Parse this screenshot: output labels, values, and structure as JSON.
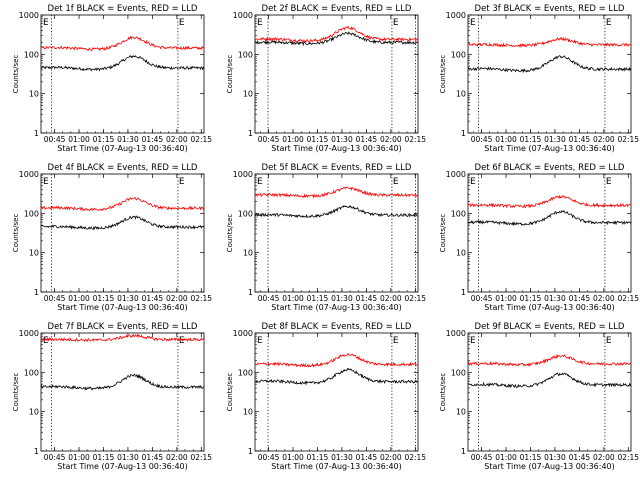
{
  "figure": {
    "xlabel": "Start Time (07-Aug-13 00:36:40)",
    "ylabel": "Counts/sec",
    "x_tick_labels": [
      "00:45",
      "01:00",
      "01:15",
      "01:30",
      "01:45",
      "02:00",
      "02:15"
    ],
    "y_tick_labels": [
      "1",
      "10",
      "100",
      "1000"
    ],
    "marker_label": "E",
    "colors": {
      "events": "#000000",
      "lld": "#ff0000",
      "axes": "#000000",
      "background": "#ffffff"
    }
  },
  "chart_data": [
    {
      "type": "line",
      "title": "Det 1f BLACK = Events, RED = LLD",
      "xlabel": "Start Time (07-Aug-13 00:36:40)",
      "ylabel": "Counts/sec",
      "x_unit": "minutes since 00:36:40",
      "xlim": [
        0,
        100
      ],
      "ylim": [
        1,
        1000
      ],
      "yscale": "log",
      "x_ticks": [
        8.33,
        23.33,
        38.33,
        53.33,
        68.33,
        83.33,
        98.33
      ],
      "markers": [
        {
          "x": 6.5,
          "style": "dotted"
        },
        {
          "x": 84.0,
          "style": "dotted",
          "label": "E"
        }
      ],
      "series": [
        {
          "name": "Events",
          "color": "#000000",
          "base": 45,
          "bump": 0.3
        },
        {
          "name": "LLD",
          "color": "#ff0000",
          "base": 145,
          "bump": 0.27
        }
      ]
    },
    {
      "type": "line",
      "title": "Det 2f BLACK = Events, RED = LLD",
      "xlabel": "Start Time (07-Aug-13 00:36:40)",
      "ylabel": "Counts/sec",
      "x_unit": "minutes since 00:36:40",
      "xlim": [
        0,
        100
      ],
      "ylim": [
        1,
        1000
      ],
      "yscale": "log",
      "x_ticks": [
        8.33,
        23.33,
        38.33,
        53.33,
        68.33,
        83.33,
        98.33
      ],
      "markers": [
        {
          "x": 8.0,
          "style": "dotted"
        },
        {
          "x": 84.0,
          "style": "dotted",
          "label": "E"
        },
        {
          "x": 98.5,
          "style": "dotted"
        }
      ],
      "series": [
        {
          "name": "Events",
          "color": "#000000",
          "base": 200,
          "bump": 0.23
        },
        {
          "name": "LLD",
          "color": "#ff0000",
          "base": 240,
          "bump": 0.3
        }
      ]
    },
    {
      "type": "line",
      "title": "Det 3f BLACK = Events, RED = LLD",
      "xlabel": "Start Time (07-Aug-13 00:36:40)",
      "ylabel": "Counts/sec",
      "x_unit": "minutes since 00:36:40",
      "xlim": [
        0,
        100
      ],
      "ylim": [
        1,
        1000
      ],
      "yscale": "log",
      "x_ticks": [
        8.33,
        23.33,
        38.33,
        53.33,
        68.33,
        83.33,
        98.33
      ],
      "markers": [
        {
          "x": 6.5,
          "style": "dotted"
        },
        {
          "x": 84.0,
          "style": "dotted",
          "label": "E"
        }
      ],
      "series": [
        {
          "name": "Events",
          "color": "#000000",
          "base": 42,
          "bump": 0.32
        },
        {
          "name": "LLD",
          "color": "#ff0000",
          "base": 175,
          "bump": 0.15
        }
      ]
    },
    {
      "type": "line",
      "title": "Det 4f BLACK = Events, RED = LLD",
      "xlabel": "Start Time (07-Aug-13 00:36:40)",
      "ylabel": "Counts/sec",
      "x_unit": "minutes since 00:36:40",
      "xlim": [
        0,
        100
      ],
      "ylim": [
        1,
        1000
      ],
      "yscale": "log",
      "x_ticks": [
        8.33,
        23.33,
        38.33,
        53.33,
        68.33,
        83.33,
        98.33
      ],
      "markers": [
        {
          "x": 6.5,
          "style": "dotted"
        },
        {
          "x": 84.0,
          "style": "dotted",
          "label": "E"
        }
      ],
      "series": [
        {
          "name": "Events",
          "color": "#000000",
          "base": 45,
          "bump": 0.25
        },
        {
          "name": "LLD",
          "color": "#ff0000",
          "base": 135,
          "bump": 0.25
        }
      ]
    },
    {
      "type": "line",
      "title": "Det 5f BLACK = Events, RED = LLD",
      "xlabel": "Start Time (07-Aug-13 00:36:40)",
      "ylabel": "Counts/sec",
      "x_unit": "minutes since 00:36:40",
      "xlim": [
        0,
        100
      ],
      "ylim": [
        1,
        1000
      ],
      "yscale": "log",
      "x_ticks": [
        8.33,
        23.33,
        38.33,
        53.33,
        68.33,
        83.33,
        98.33
      ],
      "markers": [
        {
          "x": 8.0,
          "style": "dotted"
        },
        {
          "x": 84.0,
          "style": "dotted",
          "label": "E"
        },
        {
          "x": 98.5,
          "style": "dotted"
        }
      ],
      "series": [
        {
          "name": "Events",
          "color": "#000000",
          "base": 90,
          "bump": 0.22
        },
        {
          "name": "LLD",
          "color": "#ff0000",
          "base": 290,
          "bump": 0.18
        }
      ]
    },
    {
      "type": "line",
      "title": "Det 6f BLACK = Events, RED = LLD",
      "xlabel": "Start Time (07-Aug-13 00:36:40)",
      "ylabel": "Counts/sec",
      "x_unit": "minutes since 00:36:40",
      "xlim": [
        0,
        100
      ],
      "ylim": [
        1,
        1000
      ],
      "yscale": "log",
      "x_ticks": [
        8.33,
        23.33,
        38.33,
        53.33,
        68.33,
        83.33,
        98.33
      ],
      "markers": [
        {
          "x": 6.5,
          "style": "dotted"
        },
        {
          "x": 84.0,
          "style": "dotted",
          "label": "E"
        }
      ],
      "series": [
        {
          "name": "Events",
          "color": "#000000",
          "base": 58,
          "bump": 0.28
        },
        {
          "name": "LLD",
          "color": "#ff0000",
          "base": 160,
          "bump": 0.22
        }
      ]
    },
    {
      "type": "line",
      "title": "Det 7f BLACK = Events, RED = LLD",
      "xlabel": "Start Time (07-Aug-13 00:36:40)",
      "ylabel": "Counts/sec",
      "x_unit": "minutes since 00:36:40",
      "xlim": [
        0,
        100
      ],
      "ylim": [
        1,
        1000
      ],
      "yscale": "log",
      "x_ticks": [
        8.33,
        23.33,
        38.33,
        53.33,
        68.33,
        83.33,
        98.33
      ],
      "markers": [
        {
          "x": 6.5,
          "style": "dotted"
        },
        {
          "x": 84.0,
          "style": "dotted",
          "label": "E"
        }
      ],
      "series": [
        {
          "name": "Events",
          "color": "#000000",
          "base": 42,
          "bump": 0.3
        },
        {
          "name": "LLD",
          "color": "#ff0000",
          "base": 680,
          "bump": 0.1
        }
      ]
    },
    {
      "type": "line",
      "title": "Det 8f BLACK = Events, RED = LLD",
      "xlabel": "Start Time (07-Aug-13 00:36:40)",
      "ylabel": "Counts/sec",
      "x_unit": "minutes since 00:36:40",
      "xlim": [
        0,
        100
      ],
      "ylim": [
        1,
        1000
      ],
      "yscale": "log",
      "x_ticks": [
        8.33,
        23.33,
        38.33,
        53.33,
        68.33,
        83.33,
        98.33
      ],
      "markers": [
        {
          "x": 8.0,
          "style": "dotted"
        },
        {
          "x": 84.0,
          "style": "dotted",
          "label": "E"
        },
        {
          "x": 98.5,
          "style": "dotted"
        }
      ],
      "series": [
        {
          "name": "Events",
          "color": "#000000",
          "base": 58,
          "bump": 0.3
        },
        {
          "name": "LLD",
          "color": "#ff0000",
          "base": 160,
          "bump": 0.25
        }
      ]
    },
    {
      "type": "line",
      "title": "Det 9f BLACK = Events, RED = LLD",
      "xlabel": "Start Time (07-Aug-13 00:36:40)",
      "ylabel": "Counts/sec",
      "x_unit": "minutes since 00:36:40",
      "xlim": [
        0,
        100
      ],
      "ylim": [
        1,
        1000
      ],
      "yscale": "log",
      "x_ticks": [
        8.33,
        23.33,
        38.33,
        53.33,
        68.33,
        83.33,
        98.33
      ],
      "markers": [
        {
          "x": 6.5,
          "style": "dotted"
        },
        {
          "x": 84.0,
          "style": "dotted",
          "label": "E"
        }
      ],
      "series": [
        {
          "name": "Events",
          "color": "#000000",
          "base": 48,
          "bump": 0.28
        },
        {
          "name": "LLD",
          "color": "#ff0000",
          "base": 165,
          "bump": 0.2
        }
      ]
    }
  ]
}
